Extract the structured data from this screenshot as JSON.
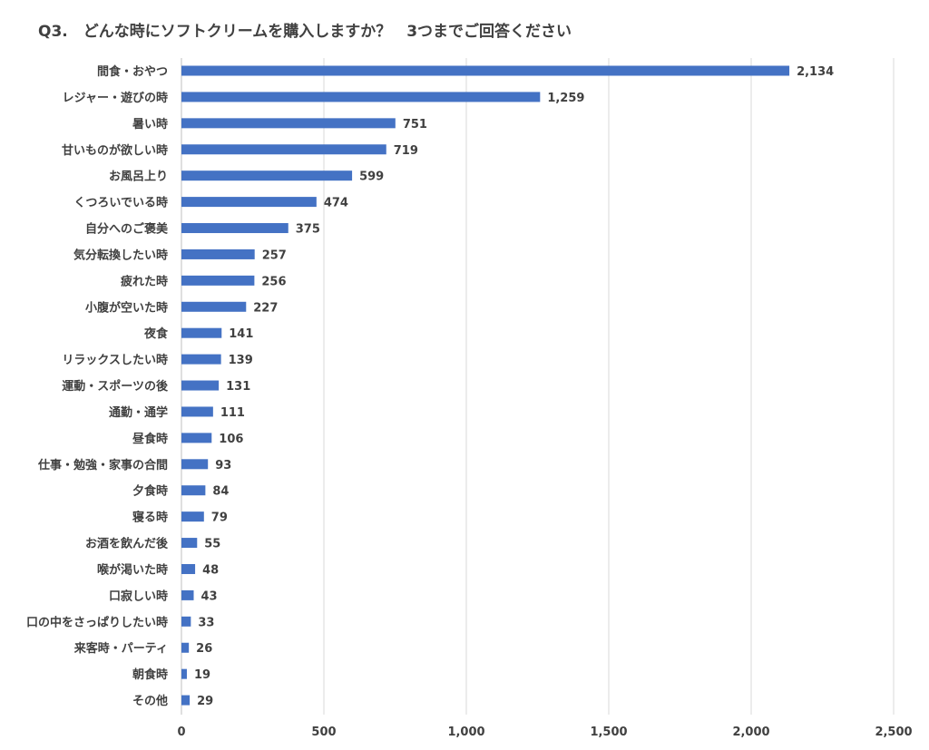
{
  "chart_data": {
    "type": "bar",
    "orientation": "horizontal",
    "title": "Q3.　どんな時にソフトクリームを購入しますか？　3つまでご回答ください",
    "xlabel": "",
    "ylabel": "",
    "xlim": [
      0,
      2500
    ],
    "xticks": [
      0,
      500,
      1000,
      1500,
      2000,
      2500
    ],
    "xtick_labels": [
      "0",
      "500",
      "1,000",
      "1,500",
      "2,000",
      "2,500"
    ],
    "grid": "vertical",
    "bar_color": "#4472C4",
    "categories": [
      "間食・おやつ",
      "レジャー・遊びの時",
      "暑い時",
      "甘いものが欲しい時",
      "お風呂上り",
      "くつろいでいる時",
      "自分へのご褒美",
      "気分転換したい時",
      "疲れた時",
      "小腹が空いた時",
      "夜食",
      "リラックスしたい時",
      "運動・スポーツの後",
      "通勤・通学",
      "昼食時",
      "仕事・勉強・家事の合間",
      "夕食時",
      "寝る時",
      "お酒を飲んだ後",
      "喉が渇いた時",
      "口寂しい時",
      "口の中をさっぱりしたい時",
      "来客時・パーティ",
      "朝食時",
      "その他"
    ],
    "values": [
      2134,
      1259,
      751,
      719,
      599,
      474,
      375,
      257,
      256,
      227,
      141,
      139,
      131,
      111,
      106,
      93,
      84,
      79,
      55,
      48,
      43,
      33,
      26,
      19,
      29
    ],
    "value_labels": [
      "2,134",
      "1,259",
      "751",
      "719",
      "599",
      "474",
      "375",
      "257",
      "256",
      "227",
      "141",
      "139",
      "131",
      "111",
      "106",
      "93",
      "84",
      "79",
      "55",
      "48",
      "43",
      "33",
      "26",
      "19",
      "29"
    ]
  }
}
